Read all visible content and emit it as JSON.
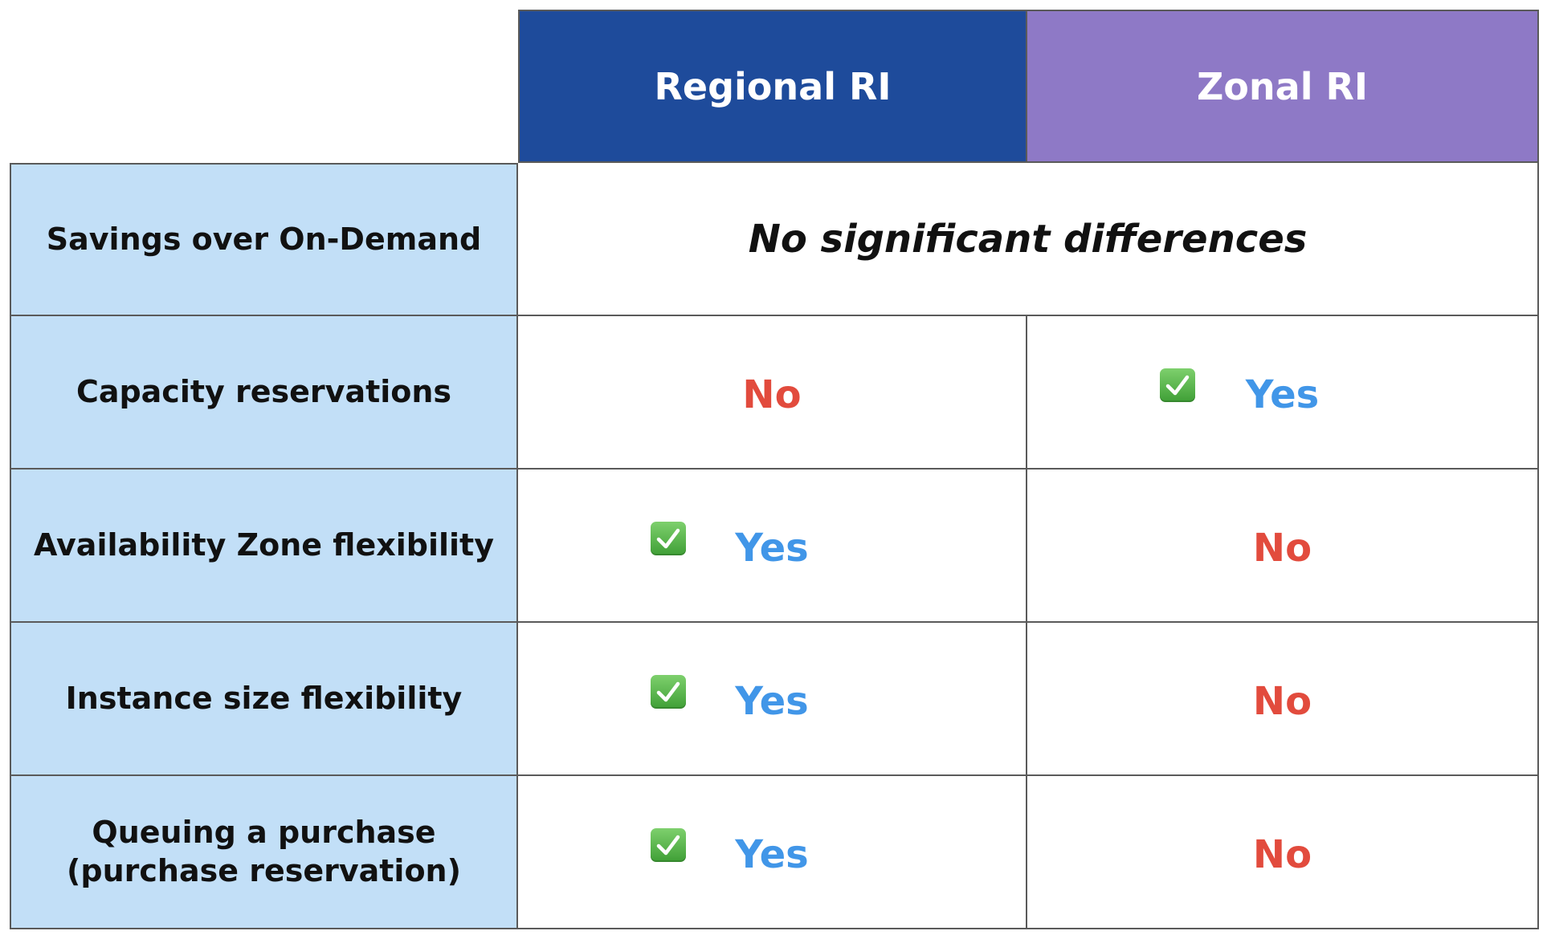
{
  "colors": {
    "regional_header": "#1e4b9b",
    "zonal_header": "#8e79c6",
    "row_label_bg": "#c2dff7",
    "yes": "#4196e8",
    "no": "#e24b3d"
  },
  "columns": [
    {
      "label": "Regional RI"
    },
    {
      "label": "Zonal RI"
    }
  ],
  "rows": [
    {
      "label": "Savings over On-Demand",
      "merged": "No significant differences"
    },
    {
      "label": "Capacity reservations",
      "regional": "No",
      "zonal": "Yes",
      "regional_check": false,
      "zonal_check": true
    },
    {
      "label": "Availability Zone flexibility",
      "regional": "Yes",
      "zonal": "No",
      "regional_check": true,
      "zonal_check": false
    },
    {
      "label": "Instance size flexibility",
      "regional": "Yes",
      "zonal": "No",
      "regional_check": true,
      "zonal_check": false
    },
    {
      "label": "Queuing a purchase\n(purchase reservation)",
      "regional": "Yes",
      "zonal": "No",
      "regional_check": true,
      "zonal_check": false
    }
  ],
  "icons": {
    "check": "check-mark-button-icon"
  }
}
